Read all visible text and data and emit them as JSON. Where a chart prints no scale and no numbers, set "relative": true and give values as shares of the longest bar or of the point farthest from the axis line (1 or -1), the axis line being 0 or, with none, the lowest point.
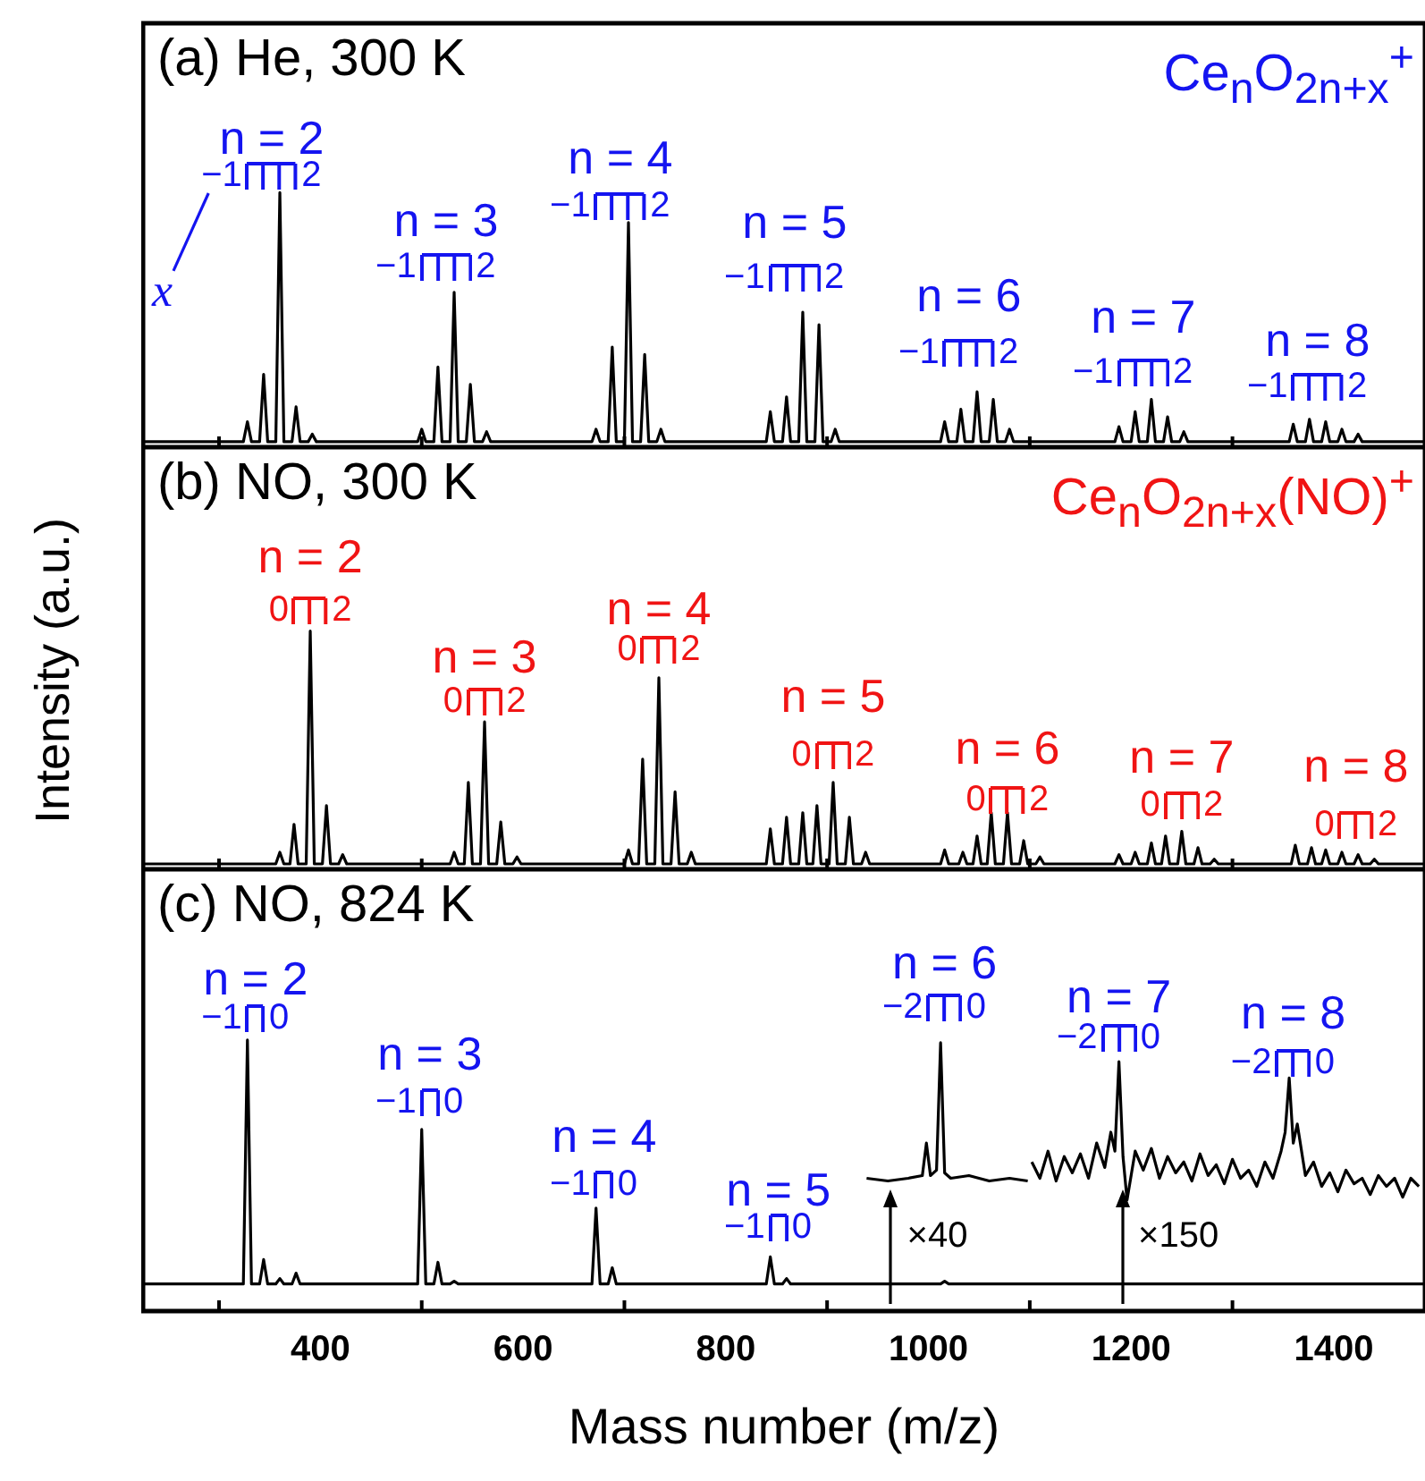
{
  "chart_data": [
    {
      "type": "line",
      "title": "(a) He, 300 K",
      "subtitle": "Ce$_{n}$O$_{2n+x}$$^{+}$",
      "relative": true,
      "tick_labels": false,
      "xlim": [
        225,
        1490
      ],
      "xticks": [
        {
          "value": 300,
          "label": null
        },
        400,
        {
          "value": 500,
          "label": null
        },
        600,
        {
          "value": 700,
          "label": null
        },
        800,
        {
          "value": 900,
          "label": null
        },
        1000,
        {
          "value": 1100,
          "label": null
        },
        1200,
        {
          "value": 1300,
          "label": null
        },
        1400
      ],
      "series": [
        {
          "color": "#000000",
          "x": [
            225,
            324,
            328,
            332,
            340,
            344,
            348,
            356,
            360,
            364,
            372,
            376,
            380,
            388,
            392,
            396,
            496,
            500,
            504,
            512,
            516,
            520,
            528,
            532,
            536,
            544,
            548,
            552,
            560,
            564,
            568,
            668,
            672,
            676,
            684,
            688,
            692,
            700,
            704,
            708,
            716,
            720,
            724,
            732,
            736,
            740,
            840,
            844,
            848,
            856,
            860,
            864,
            872,
            876,
            880,
            888,
            892,
            896,
            904,
            908,
            912,
            1012,
            1016,
            1020,
            1028,
            1032,
            1036,
            1044,
            1048,
            1052,
            1060,
            1064,
            1068,
            1076,
            1080,
            1084,
            1184,
            1188,
            1192,
            1200,
            1204,
            1208,
            1216,
            1220,
            1224,
            1232,
            1236,
            1240,
            1248,
            1252,
            1256,
            1356,
            1360,
            1364,
            1372,
            1376,
            1380,
            1388,
            1392,
            1396,
            1404,
            1408,
            1412,
            1420,
            1424,
            1428,
            1490
          ],
          "values": [
            0,
            0,
            0.08,
            0,
            0,
            0.27,
            0,
            0,
            1,
            0,
            0,
            0.14,
            0,
            0,
            0.03,
            0,
            0,
            0.05,
            0,
            0,
            0.3,
            0,
            0,
            0.6,
            0,
            0,
            0.23,
            0,
            0,
            0.04,
            0,
            0,
            0.05,
            0,
            0,
            0.38,
            0,
            0,
            0.88,
            0,
            0,
            0.35,
            0,
            0,
            0.05,
            0,
            0,
            0.12,
            0,
            0,
            0.18,
            0,
            0,
            0.52,
            0,
            0,
            0.47,
            0,
            0,
            0.05,
            0,
            0,
            0.08,
            0,
            0,
            0.13,
            0,
            0,
            0.2,
            0,
            0,
            0.17,
            0,
            0,
            0.05,
            0,
            0,
            0.06,
            0,
            0,
            0.12,
            0,
            0,
            0.17,
            0,
            0,
            0.1,
            0,
            0,
            0.04,
            0,
            0,
            0.07,
            0,
            0,
            0.09,
            0,
            0,
            0.08,
            0,
            0,
            0.05,
            0,
            0,
            0.03,
            0,
            0
          ]
        }
      ],
      "annotations": [
        "n = 2",
        "−1",
        "2",
        "n = 3",
        "−1",
        "2",
        "n = 4",
        "−1",
        "2",
        "n = 5",
        "−1",
        "2",
        "n = 6",
        "−1",
        "2",
        "n = 7",
        "−1",
        "2",
        "n = 8",
        "−1",
        "2",
        "x"
      ]
    },
    {
      "type": "line",
      "title": "(b) NO, 300 K",
      "subtitle": "Ce$_{n}$O$_{2n+x}$(NO)$^{+}$",
      "ylabel": "Intensity (a.u.)",
      "relative": true,
      "tick_labels": false,
      "xlim": [
        225,
        1490
      ],
      "xticks": [
        {
          "value": 300,
          "label": null
        },
        400,
        {
          "value": 500,
          "label": null
        },
        600,
        {
          "value": 700,
          "label": null
        },
        800,
        {
          "value": 900,
          "label": null
        },
        1000,
        {
          "value": 1100,
          "label": null
        },
        1200,
        {
          "value": 1300,
          "label": null
        },
        1400
      ],
      "series": [
        {
          "color": "#000000",
          "x": [
            225,
            356,
            360,
            364,
            370,
            374,
            378,
            386,
            390,
            394,
            402,
            406,
            410,
            418,
            422,
            426,
            528,
            532,
            536,
            542,
            546,
            550,
            558,
            562,
            566,
            574,
            578,
            582,
            590,
            594,
            598,
            700,
            704,
            708,
            714,
            718,
            722,
            730,
            734,
            738,
            746,
            750,
            754,
            762,
            766,
            770,
            840,
            844,
            848,
            856,
            860,
            864,
            872,
            876,
            880,
            886,
            890,
            894,
            902,
            906,
            910,
            918,
            922,
            926,
            934,
            938,
            942,
            1012,
            1016,
            1020,
            1030,
            1034,
            1038,
            1044,
            1048,
            1052,
            1058,
            1062,
            1066,
            1074,
            1078,
            1082,
            1090,
            1094,
            1098,
            1106,
            1110,
            1114,
            1184,
            1188,
            1192,
            1200,
            1204,
            1208,
            1216,
            1220,
            1224,
            1230,
            1234,
            1238,
            1246,
            1250,
            1254,
            1262,
            1266,
            1270,
            1278,
            1282,
            1286,
            1358,
            1362,
            1366,
            1374,
            1378,
            1382,
            1388,
            1392,
            1396,
            1404,
            1408,
            1412,
            1420,
            1424,
            1428,
            1436,
            1440,
            1444,
            1490
          ],
          "values": [
            0,
            0,
            0.05,
            0,
            0,
            0.17,
            0,
            0,
            1,
            0,
            0,
            0.25,
            0,
            0,
            0.04,
            0,
            0,
            0.05,
            0,
            0,
            0.35,
            0,
            0,
            0.61,
            0,
            0,
            0.18,
            0,
            0,
            0.03,
            0,
            0,
            0.06,
            0,
            0,
            0.45,
            0,
            0,
            0.8,
            0,
            0,
            0.31,
            0,
            0,
            0.05,
            0,
            0,
            0.15,
            0,
            0,
            0.2,
            0,
            0,
            0.22,
            0,
            0,
            0.25,
            0,
            0,
            0.35,
            0,
            0,
            0.2,
            0,
            0,
            0.05,
            0,
            0,
            0.06,
            0,
            0,
            0.05,
            0,
            0,
            0.12,
            0,
            0,
            0.22,
            0,
            0,
            0.22,
            0,
            0,
            0.1,
            0,
            0,
            0.03,
            0,
            0,
            0.04,
            0,
            0,
            0.05,
            0,
            0,
            0.09,
            0,
            0,
            0.12,
            0,
            0,
            0.14,
            0,
            0,
            0.07,
            0,
            0,
            0.02,
            0,
            0,
            0.08,
            0,
            0,
            0.07,
            0,
            0,
            0.06,
            0,
            0,
            0.05,
            0,
            0,
            0.04,
            0,
            0,
            0.02,
            0,
            0
          ]
        }
      ],
      "annotations": [
        "n = 2",
        "0",
        "2",
        "n = 3",
        "0",
        "2",
        "n = 4",
        "0",
        "2",
        "n = 5",
        "0",
        "2",
        "n = 6",
        "0",
        "2",
        "n = 7",
        "0",
        "2",
        "n = 8",
        "0",
        "2"
      ]
    },
    {
      "type": "line",
      "title": "(c) NO, 824 K",
      "xlabel": "Mass number (m/z)",
      "relative": true,
      "tick_labels": "x",
      "xlim": [
        225,
        1490
      ],
      "xticks": [
        {
          "value": 300,
          "label": null
        },
        400,
        {
          "value": 500,
          "label": null
        },
        600,
        {
          "value": 700,
          "label": null
        },
        800,
        {
          "value": 900,
          "label": null
        },
        1000,
        {
          "value": 1100,
          "label": null
        },
        1200,
        {
          "value": 1300,
          "label": null
        },
        1400
      ],
      "series": [
        {
          "color": "#000000",
          "x": [
            225,
            324,
            328,
            332,
            340,
            344,
            348,
            356,
            360,
            364,
            372,
            376,
            380,
            496,
            500,
            504,
            512,
            516,
            520,
            528,
            532,
            536,
            668,
            672,
            676,
            684,
            688,
            692,
            840,
            844,
            848,
            856,
            860,
            864,
            1012,
            1016,
            1020,
            1490
          ],
          "values": [
            0.1,
            0.1,
            1,
            0.1,
            0.1,
            0.19,
            0.1,
            0.1,
            0.12,
            0.1,
            0.1,
            0.14,
            0.1,
            0.1,
            0.67,
            0.1,
            0.1,
            0.18,
            0.1,
            0.1,
            0.11,
            0.1,
            0.1,
            0.38,
            0.1,
            0.1,
            0.16,
            0.1,
            0.1,
            0.2,
            0.1,
            0.1,
            0.12,
            0.1,
            0.1,
            0.11,
            0.1,
            0.1
          ]
        },
        {
          "color": "#000000",
          "x": [
            939,
            960,
            980,
            994,
            998,
            1002,
            1008,
            1012,
            1016,
            1022,
            1040,
            1060,
            1080,
            1098
          ],
          "values": [
            0.49,
            0.48,
            0.49,
            0.5,
            0.62,
            0.5,
            0.52,
            0.99,
            0.51,
            0.49,
            0.5,
            0.48,
            0.49,
            0.48
          ]
        },
        {
          "color": "#000000",
          "x": [
            1102,
            1110,
            1118,
            1126,
            1134,
            1142,
            1150,
            1158,
            1166,
            1174,
            1180,
            1184,
            1188,
            1192,
            1196,
            1204,
            1212,
            1220,
            1228,
            1236,
            1244,
            1252,
            1260,
            1268,
            1276,
            1284,
            1292,
            1300,
            1308,
            1316,
            1324,
            1332,
            1340,
            1348,
            1352,
            1356,
            1360,
            1364,
            1372,
            1380,
            1388,
            1396,
            1404,
            1412,
            1420,
            1428,
            1436,
            1444,
            1452,
            1460,
            1468,
            1476,
            1484
          ],
          "values": [
            0.55,
            0.49,
            0.59,
            0.48,
            0.57,
            0.51,
            0.58,
            0.49,
            0.62,
            0.53,
            0.66,
            0.59,
            0.92,
            0.57,
            0.41,
            0.59,
            0.52,
            0.6,
            0.49,
            0.57,
            0.51,
            0.55,
            0.48,
            0.58,
            0.5,
            0.54,
            0.47,
            0.56,
            0.49,
            0.52,
            0.46,
            0.55,
            0.49,
            0.59,
            0.66,
            0.86,
            0.62,
            0.69,
            0.5,
            0.55,
            0.46,
            0.51,
            0.44,
            0.52,
            0.47,
            0.49,
            0.43,
            0.5,
            0.46,
            0.49,
            0.42,
            0.49,
            0.46
          ]
        }
      ],
      "annotations": [
        "n = 2",
        "−1",
        "0",
        "n = 3",
        "−1",
        "0",
        "n = 4",
        "−1",
        "0",
        "n = 5",
        "−1",
        "0",
        "n = 6",
        "−2",
        "0",
        "n = 7",
        "−2",
        "0",
        "n = 8",
        "−2",
        "0",
        "×40",
        "×150"
      ]
    }
  ]
}
